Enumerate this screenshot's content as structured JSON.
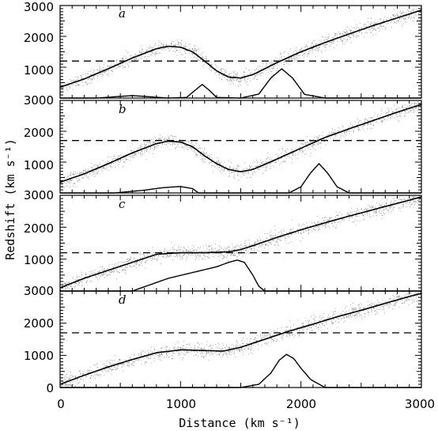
{
  "chart_data": {
    "type": "line",
    "xlabel": "Distance (km s⁻¹)",
    "ylabel": "Redshift (km s⁻¹)",
    "xlim": [
      0,
      3000
    ],
    "ylim": [
      0,
      3000
    ],
    "x_ticks": [
      0,
      1000,
      2000,
      3000
    ],
    "y_tick_labels": [
      "3000",
      "2000",
      "1000",
      "0"
    ],
    "grid": false,
    "legend": "none",
    "panels": [
      {
        "letter": "a",
        "dashed_level": 1200,
        "mean_relation": {
          "x": [
            0,
            200,
            400,
            600,
            800,
            900,
            1000,
            1100,
            1200,
            1300,
            1400,
            1500,
            1600,
            1700,
            1800,
            2000,
            2200,
            2400,
            2600,
            2800,
            3000
          ],
          "y": [
            350,
            620,
            950,
            1300,
            1600,
            1680,
            1650,
            1500,
            1200,
            880,
            680,
            650,
            760,
            950,
            1150,
            1500,
            1800,
            2080,
            2350,
            2600,
            2850
          ]
        },
        "density_profile": {
          "x": [
            0,
            300,
            450,
            600,
            750,
            900,
            1050,
            1120,
            1180,
            1240,
            1300,
            1500,
            1650,
            1750,
            1840,
            1930,
            2030,
            2200,
            3000
          ],
          "y": [
            0,
            0,
            40,
            80,
            40,
            0,
            20,
            250,
            440,
            250,
            20,
            0,
            130,
            650,
            950,
            650,
            120,
            0,
            0
          ]
        }
      },
      {
        "letter": "b",
        "dashed_level": 1700,
        "mean_relation": {
          "x": [
            0,
            200,
            400,
            600,
            800,
            900,
            1000,
            1100,
            1200,
            1300,
            1400,
            1500,
            1600,
            1800,
            2000,
            2200,
            2400,
            2600,
            2800,
            3000
          ],
          "y": [
            350,
            620,
            950,
            1300,
            1600,
            1680,
            1650,
            1500,
            1200,
            950,
            760,
            690,
            760,
            1100,
            1450,
            1800,
            2080,
            2350,
            2620,
            2870
          ]
        },
        "density_profile": {
          "x": [
            0,
            450,
            700,
            850,
            1000,
            1100,
            1150,
            1900,
            2000,
            2080,
            2150,
            2220,
            2300,
            2400,
            3000
          ],
          "y": [
            0,
            0,
            90,
            170,
            210,
            140,
            0,
            0,
            200,
            650,
            950,
            650,
            200,
            0,
            0
          ]
        }
      },
      {
        "letter": "c",
        "dashed_level": 1200,
        "mean_relation": {
          "x": [
            0,
            200,
            400,
            600,
            800,
            900,
            1000,
            1200,
            1400,
            1500,
            1600,
            1800,
            2000,
            2200,
            2400,
            2600,
            2800,
            3000
          ],
          "y": [
            100,
            400,
            650,
            900,
            1150,
            1180,
            1200,
            1200,
            1230,
            1300,
            1420,
            1680,
            1920,
            2140,
            2350,
            2550,
            2750,
            2950
          ]
        },
        "density_profile": {
          "x": [
            0,
            600,
            750,
            900,
            1100,
            1300,
            1400,
            1470,
            1530,
            1600,
            1650,
            1700,
            3000
          ],
          "y": [
            0,
            0,
            200,
            400,
            580,
            760,
            900,
            970,
            900,
            500,
            150,
            0,
            0
          ]
        }
      },
      {
        "letter": "d",
        "dashed_level": 1700,
        "mean_relation": {
          "x": [
            0,
            200,
            400,
            600,
            800,
            1000,
            1200,
            1350,
            1500,
            1700,
            1900,
            2100,
            2300,
            2500,
            2700,
            2900,
            3000
          ],
          "y": [
            100,
            380,
            640,
            870,
            1080,
            1170,
            1150,
            1130,
            1250,
            1500,
            1750,
            1970,
            2200,
            2400,
            2620,
            2830,
            2930
          ]
        },
        "density_profile": {
          "x": [
            0,
            1500,
            1650,
            1750,
            1820,
            1880,
            1940,
            2000,
            2080,
            2200,
            3000
          ],
          "y": [
            0,
            0,
            100,
            450,
            850,
            1030,
            900,
            600,
            250,
            0,
            0
          ]
        }
      }
    ]
  }
}
